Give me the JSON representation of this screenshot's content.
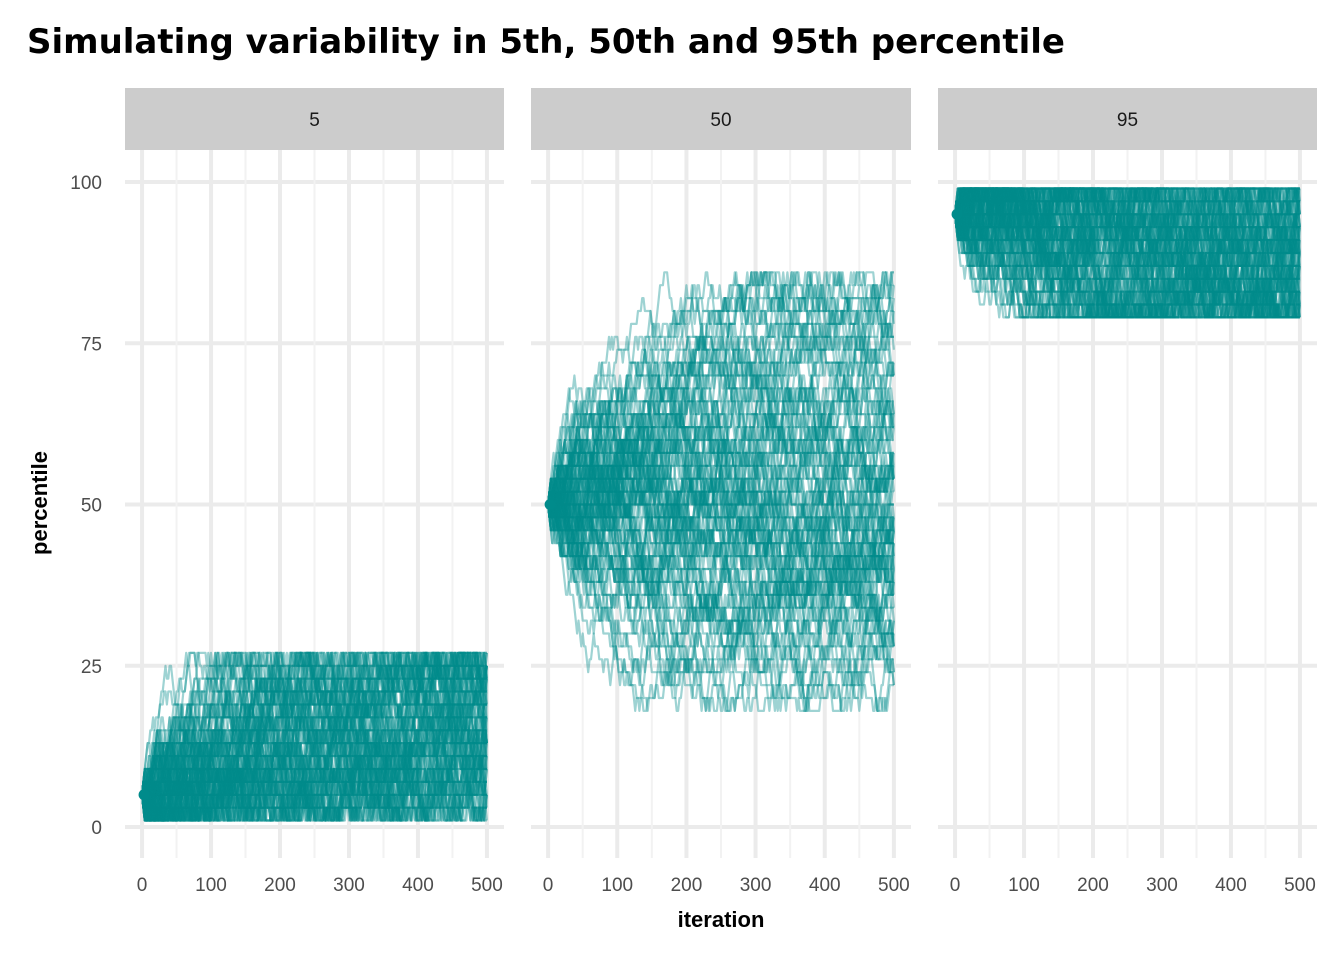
{
  "chart_data": {
    "type": "line",
    "title": "Simulating variability in 5th, 50th and 95th percentile",
    "xlabel": "iteration",
    "ylabel": "percentile",
    "xlim": [
      0,
      500
    ],
    "ylim": [
      0,
      100
    ],
    "x_ticks": [
      0,
      100,
      200,
      300,
      400,
      500
    ],
    "y_ticks": [
      0,
      25,
      50,
      75,
      100
    ],
    "grid": true,
    "legend": "none",
    "series_color": "#008B8B",
    "series_opacity": 0.38,
    "runs_per_panel": 100,
    "iterations": 500,
    "panels": [
      {
        "strip_label": "5",
        "start": 5,
        "end_range": [
          1,
          27
        ],
        "interior_range": [
          1,
          25
        ]
      },
      {
        "strip_label": "50",
        "start": 50,
        "end_range": [
          18,
          86
        ],
        "interior_range": [
          24,
          79
        ]
      },
      {
        "strip_label": "95",
        "start": 95,
        "end_range": [
          78,
          100
        ],
        "interior_range": [
          80,
          100
        ]
      }
    ]
  }
}
